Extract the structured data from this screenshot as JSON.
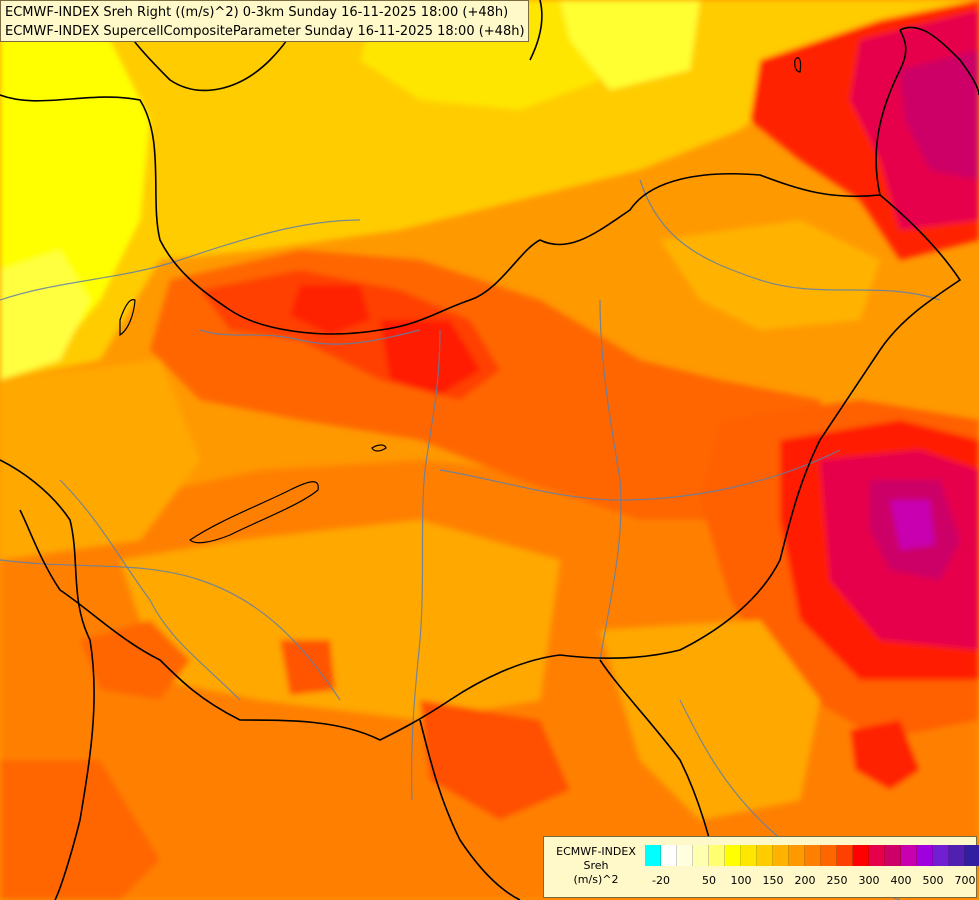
{
  "title": {
    "line1": "ECMWF-INDEX Sreh Right ((m/s)^2) 0-3km Sunday 16-11-2025 18:00 (+48h)",
    "line2": "ECMWF-INDEX SupercellCompositeParameter Sunday 16-11-2025 18:00 (+48h)"
  },
  "legend": {
    "line1": "ECMWF-INDEX",
    "line2": "Sreh",
    "line3": "(m/s)^2",
    "colors": [
      "#00FFFF",
      "#FFFFFF",
      "#FFFFE0",
      "#FFFFB0",
      "#FFFF70",
      "#FFFF00",
      "#FFE600",
      "#FFCC00",
      "#FFB300",
      "#FF9900",
      "#FF8000",
      "#FF6600",
      "#FF4000",
      "#FF0000",
      "#E6004C",
      "#CC0066",
      "#C800B0",
      "#A000E0",
      "#7020D0",
      "#5020B0",
      "#3020A0",
      "#101080"
    ],
    "ticks": [
      "-20",
      "50",
      "100",
      "150",
      "200",
      "250",
      "300",
      "400",
      "500",
      "700"
    ]
  },
  "map": {
    "background_color": "#FF9900",
    "icon": "sreh-contour-map"
  }
}
